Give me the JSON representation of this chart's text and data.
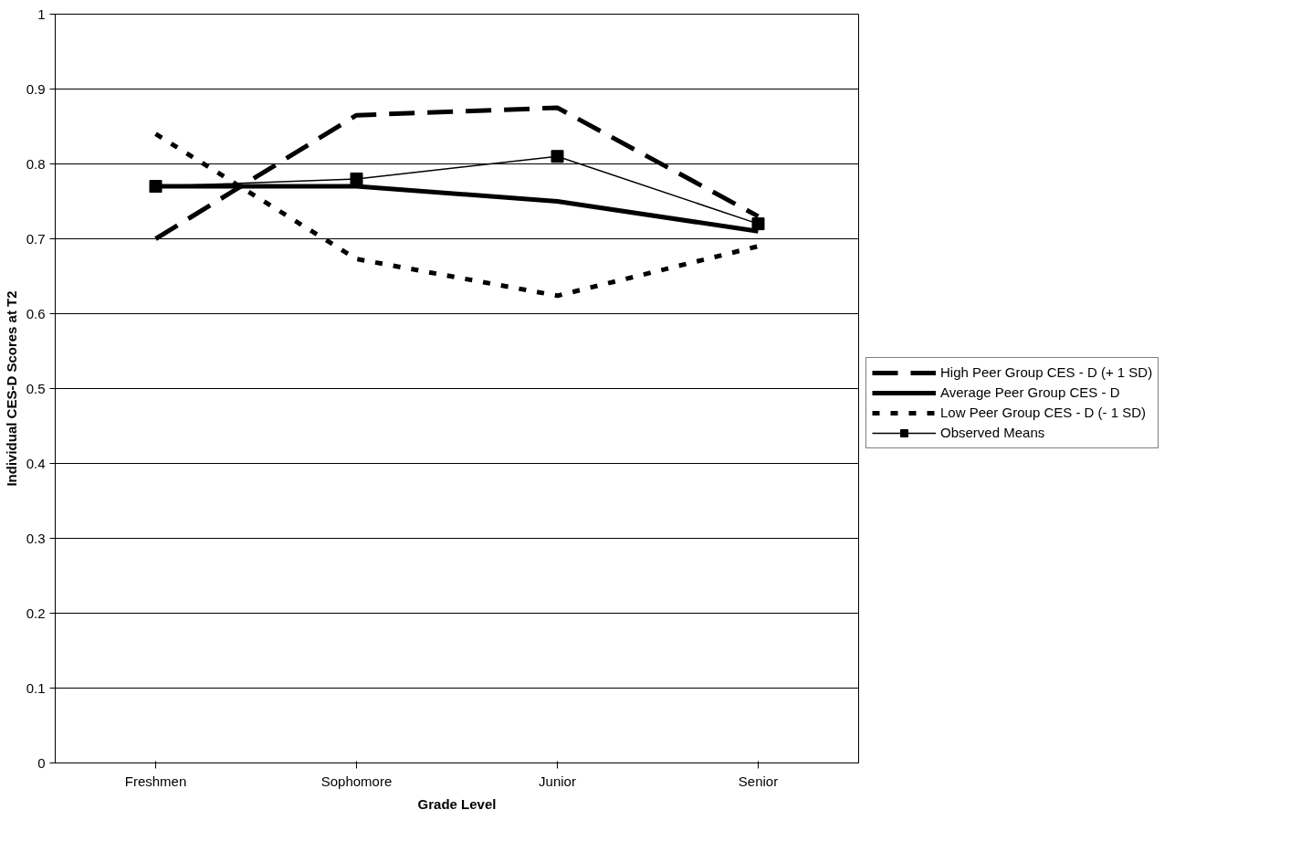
{
  "chart_data": {
    "type": "line",
    "xlabel": "Grade Level",
    "ylabel": "Individual CES-D Scores at T2",
    "categories": [
      "Freshmen",
      "Sophomore",
      "Junior",
      "Senior"
    ],
    "series": [
      {
        "name": "High Peer Group CES - D (+ 1 SD)",
        "color": "#000000",
        "line_style": "dashed",
        "marker": "none",
        "values": [
          0.7,
          0.865,
          0.875,
          0.73
        ]
      },
      {
        "name": "Average Peer Group CES - D",
        "color": "#000000",
        "line_style": "solid",
        "marker": "none",
        "values": [
          0.77,
          0.77,
          0.75,
          0.71
        ]
      },
      {
        "name": "Low Peer Group CES - D (- 1 SD)",
        "color": "#000000",
        "line_style": "dotted",
        "marker": "none",
        "values": [
          0.84,
          0.673,
          0.624,
          0.69
        ]
      },
      {
        "name": "Observed Means",
        "color": "#000000",
        "line_style": "solid",
        "marker": "square",
        "values": [
          0.77,
          0.78,
          0.81,
          0.72
        ]
      }
    ],
    "ylim": [
      0,
      1
    ],
    "yticks": [
      0,
      0.1,
      0.2,
      0.3,
      0.4,
      0.5,
      0.6,
      0.7,
      0.8,
      0.9,
      1
    ],
    "grid": "y",
    "legend": "right"
  }
}
